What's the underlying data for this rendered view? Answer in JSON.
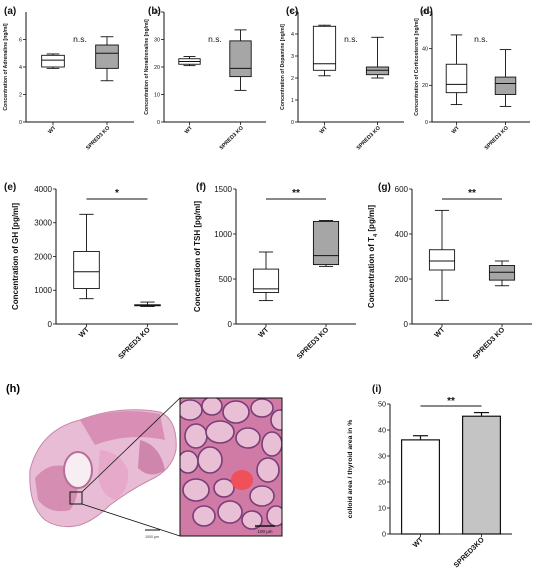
{
  "chart_data": [
    {
      "panel": "(a)",
      "type": "box",
      "ylabel": "Concentration of Adrenaline [ng/ml]",
      "categories": [
        "WT",
        "SPRED3 KO"
      ],
      "ylim": [
        0,
        8
      ],
      "yticks": [
        0,
        2,
        4,
        6
      ],
      "boxes": [
        {
          "min": 3.9,
          "q1": 4.0,
          "median": 4.5,
          "q3": 4.85,
          "max": 4.95,
          "fill": "#ffffff"
        },
        {
          "min": 3.0,
          "q1": 3.9,
          "median": 5.0,
          "q3": 5.6,
          "max": 6.2,
          "fill": "#a6a6a6"
        }
      ],
      "annotation": "n.s."
    },
    {
      "panel": "(b)",
      "type": "box",
      "ylabel": "Concentration of Noradrenaline [ng/ml]",
      "categories": [
        "WT",
        "SPRED3 KO"
      ],
      "ylim": [
        0,
        40
      ],
      "yticks": [
        0,
        10,
        20,
        30,
        40
      ],
      "boxes": [
        {
          "min": 20.5,
          "q1": 21.0,
          "median": 22.0,
          "q3": 23.0,
          "max": 23.8,
          "fill": "#ffffff"
        },
        {
          "min": 11.5,
          "q1": 16.5,
          "median": 19.5,
          "q3": 29.5,
          "max": 33.5,
          "fill": "#a6a6a6"
        }
      ],
      "annotation": "n.s."
    },
    {
      "panel": "(c)",
      "type": "box",
      "ylabel": "Concentration of Dopamine [ng/ml]",
      "categories": [
        "WT",
        "SPRED3 KO"
      ],
      "ylim": [
        0,
        5
      ],
      "yticks": [
        0,
        1,
        2,
        3,
        4,
        5
      ],
      "boxes": [
        {
          "min": 2.1,
          "q1": 2.35,
          "median": 2.65,
          "q3": 4.35,
          "max": 4.4,
          "fill": "#ffffff"
        },
        {
          "min": 2.0,
          "q1": 2.15,
          "median": 2.35,
          "q3": 2.5,
          "max": 3.85,
          "fill": "#a6a6a6"
        }
      ],
      "annotation": "n.s."
    },
    {
      "panel": "(d)",
      "type": "box",
      "ylabel": "Concentration of Corticosterone [ng/ml]",
      "categories": [
        "WT",
        "SPRED3 KO"
      ],
      "ylim": [
        0,
        60
      ],
      "yticks": [
        0,
        20,
        40,
        60
      ],
      "boxes": [
        {
          "min": 9.5,
          "q1": 16.0,
          "median": 20.5,
          "q3": 31.5,
          "max": 47.5,
          "fill": "#ffffff"
        },
        {
          "min": 8.5,
          "q1": 15.0,
          "median": 21.0,
          "q3": 24.5,
          "max": 39.5,
          "fill": "#a6a6a6"
        }
      ],
      "annotation": "n.s."
    },
    {
      "panel": "(e)",
      "type": "box",
      "ylabel": "Concentration of GH [pg/ml]",
      "categories": [
        "WT",
        "SPRED3 KO"
      ],
      "ylim": [
        0,
        4000
      ],
      "yticks": [
        0,
        1000,
        2000,
        3000,
        4000
      ],
      "boxes": [
        {
          "min": 750,
          "q1": 1050,
          "median": 1550,
          "q3": 2150,
          "max": 3250,
          "fill": "#ffffff"
        },
        {
          "min": 520,
          "q1": 540,
          "median": 555,
          "q3": 570,
          "max": 650,
          "fill": "#a6a6a6"
        }
      ],
      "annotation": "*"
    },
    {
      "panel": "(f)",
      "type": "box",
      "ylabel": "Concentration of TSH [pg/ml]",
      "categories": [
        "WT",
        "SPRED3 KO"
      ],
      "ylim": [
        0,
        1500
      ],
      "yticks": [
        0,
        500,
        1000,
        1500
      ],
      "boxes": [
        {
          "min": 260,
          "q1": 350,
          "median": 390,
          "q3": 610,
          "max": 800,
          "fill": "#ffffff"
        },
        {
          "min": 640,
          "q1": 660,
          "median": 760,
          "q3": 1140,
          "max": 1150,
          "fill": "#a6a6a6"
        }
      ],
      "annotation": "**"
    },
    {
      "panel": "(g)",
      "type": "box",
      "ylabel": "Concentration of T",
      "ylabel_sub": "4",
      "ylabel_unit": " [pg/ml]",
      "categories": [
        "WT",
        "SPRED3 KO"
      ],
      "ylim": [
        0,
        600
      ],
      "yticks": [
        0,
        200,
        400,
        600
      ],
      "boxes": [
        {
          "min": 105,
          "q1": 240,
          "median": 280,
          "q3": 330,
          "max": 505,
          "fill": "#ffffff"
        },
        {
          "min": 170,
          "q1": 195,
          "median": 230,
          "q3": 260,
          "max": 280,
          "fill": "#a6a6a6"
        }
      ],
      "annotation": "**"
    },
    {
      "panel": "(i)",
      "type": "bar",
      "ylabel": "colloid area / thyroid area in %",
      "categories": [
        "WT",
        "SPRED3KO"
      ],
      "values": [
        36.2,
        45.3
      ],
      "errors": [
        1.6,
        1.4
      ],
      "fills": [
        "#ffffff",
        "#c4c4c4"
      ],
      "ylim": [
        0,
        50
      ],
      "yticks": [
        0,
        10,
        20,
        30,
        40,
        50
      ],
      "annotation": "**"
    }
  ],
  "histology": {
    "panel": "(h)",
    "scale_bar_inset": "100 μm",
    "scale_bar_overview": "1000 μm"
  },
  "colors": {
    "axis": "#111111",
    "ko_fill": "#a6a6a6",
    "bar_ko_fill": "#c4c4c4",
    "tissue_pink": "#e4a8c6",
    "colloid_red": "#f0505a"
  }
}
